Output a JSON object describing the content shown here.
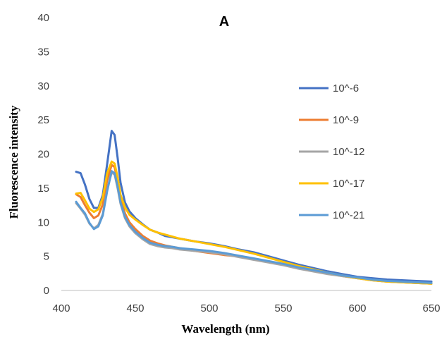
{
  "chart_data": {
    "type": "line",
    "title": "A",
    "xlabel": "Wavelength (nm)",
    "ylabel": "Fluorescence intensity",
    "xlim": [
      400,
      650
    ],
    "ylim": [
      0,
      40
    ],
    "xticks": [
      400,
      450,
      500,
      550,
      600,
      650
    ],
    "yticks": [
      0,
      5,
      10,
      15,
      20,
      25,
      30,
      35,
      40
    ],
    "grid": false,
    "legend_position": "right",
    "series": [
      {
        "name": "10^-6",
        "color": "#4472C4",
        "points": [
          [
            410,
            17.4
          ],
          [
            413,
            17.2
          ],
          [
            416,
            15.5
          ],
          [
            419,
            13.4
          ],
          [
            422,
            12.1
          ],
          [
            425,
            12.1
          ],
          [
            428,
            14.0
          ],
          [
            431,
            18.6
          ],
          [
            434,
            23.4
          ],
          [
            436,
            22.8
          ],
          [
            438,
            19.5
          ],
          [
            440,
            15.8
          ],
          [
            443,
            12.9
          ],
          [
            446,
            11.6
          ],
          [
            450,
            10.6
          ],
          [
            455,
            9.7
          ],
          [
            460,
            8.9
          ],
          [
            465,
            8.5
          ],
          [
            470,
            8.0
          ],
          [
            475,
            7.8
          ],
          [
            480,
            7.6
          ],
          [
            490,
            7.2
          ],
          [
            500,
            6.9
          ],
          [
            510,
            6.5
          ],
          [
            520,
            6.0
          ],
          [
            530,
            5.6
          ],
          [
            540,
            5.0
          ],
          [
            550,
            4.4
          ],
          [
            560,
            3.8
          ],
          [
            570,
            3.3
          ],
          [
            580,
            2.8
          ],
          [
            590,
            2.4
          ],
          [
            600,
            2.0
          ],
          [
            610,
            1.8
          ],
          [
            620,
            1.6
          ],
          [
            630,
            1.5
          ],
          [
            640,
            1.4
          ],
          [
            650,
            1.3
          ]
        ]
      },
      {
        "name": "10^-9",
        "color": "#ED7D31",
        "points": [
          [
            410,
            14.1
          ],
          [
            413,
            13.7
          ],
          [
            416,
            12.5
          ],
          [
            419,
            11.4
          ],
          [
            422,
            10.6
          ],
          [
            425,
            11.0
          ],
          [
            428,
            12.6
          ],
          [
            431,
            16.2
          ],
          [
            434,
            18.4
          ],
          [
            436,
            18.1
          ],
          [
            438,
            16.0
          ],
          [
            440,
            13.5
          ],
          [
            443,
            11.3
          ],
          [
            446,
            10.0
          ],
          [
            450,
            9.0
          ],
          [
            455,
            8.0
          ],
          [
            460,
            7.3
          ],
          [
            465,
            6.9
          ],
          [
            470,
            6.6
          ],
          [
            475,
            6.4
          ],
          [
            480,
            6.2
          ],
          [
            490,
            5.8
          ],
          [
            500,
            5.5
          ],
          [
            510,
            5.2
          ],
          [
            520,
            5.0
          ],
          [
            530,
            4.6
          ],
          [
            540,
            4.2
          ],
          [
            550,
            3.8
          ],
          [
            560,
            3.3
          ],
          [
            570,
            2.9
          ],
          [
            580,
            2.5
          ],
          [
            590,
            2.1
          ],
          [
            600,
            1.8
          ],
          [
            610,
            1.5
          ],
          [
            620,
            1.3
          ],
          [
            630,
            1.2
          ],
          [
            640,
            1.1
          ],
          [
            650,
            1.0
          ]
        ]
      },
      {
        "name": "10^-12",
        "color": "#A5A5A5",
        "points": [
          [
            410,
            12.8
          ],
          [
            413,
            12.0
          ],
          [
            416,
            11.1
          ],
          [
            419,
            9.8
          ],
          [
            422,
            9.1
          ],
          [
            425,
            9.6
          ],
          [
            428,
            11.2
          ],
          [
            431,
            14.8
          ],
          [
            434,
            17.3
          ],
          [
            436,
            17.0
          ],
          [
            438,
            15.0
          ],
          [
            440,
            12.7
          ],
          [
            443,
            10.6
          ],
          [
            446,
            9.4
          ],
          [
            450,
            8.4
          ],
          [
            455,
            7.5
          ],
          [
            460,
            6.8
          ],
          [
            465,
            6.5
          ],
          [
            470,
            6.3
          ],
          [
            475,
            6.2
          ],
          [
            480,
            6.0
          ],
          [
            490,
            5.8
          ],
          [
            500,
            5.6
          ],
          [
            510,
            5.3
          ],
          [
            520,
            4.9
          ],
          [
            530,
            4.5
          ],
          [
            540,
            4.1
          ],
          [
            550,
            3.7
          ],
          [
            560,
            3.2
          ],
          [
            570,
            2.8
          ],
          [
            580,
            2.4
          ],
          [
            590,
            2.1
          ],
          [
            600,
            1.8
          ],
          [
            610,
            1.5
          ],
          [
            620,
            1.3
          ],
          [
            630,
            1.2
          ],
          [
            640,
            1.1
          ],
          [
            650,
            1.0
          ]
        ]
      },
      {
        "name": "10^-17",
        "color": "#FFC000",
        "points": [
          [
            410,
            14.2
          ],
          [
            413,
            14.3
          ],
          [
            416,
            13.2
          ],
          [
            419,
            12.0
          ],
          [
            422,
            11.5
          ],
          [
            425,
            11.9
          ],
          [
            428,
            13.6
          ],
          [
            431,
            17.2
          ],
          [
            434,
            18.9
          ],
          [
            436,
            18.6
          ],
          [
            438,
            16.6
          ],
          [
            440,
            14.0
          ],
          [
            443,
            12.2
          ],
          [
            446,
            11.1
          ],
          [
            450,
            10.4
          ],
          [
            455,
            9.6
          ],
          [
            460,
            8.9
          ],
          [
            465,
            8.5
          ],
          [
            470,
            8.2
          ],
          [
            475,
            7.9
          ],
          [
            480,
            7.6
          ],
          [
            490,
            7.2
          ],
          [
            500,
            6.8
          ],
          [
            510,
            6.4
          ],
          [
            520,
            5.9
          ],
          [
            530,
            5.4
          ],
          [
            540,
            4.8
          ],
          [
            550,
            4.2
          ],
          [
            560,
            3.6
          ],
          [
            570,
            3.1
          ],
          [
            580,
            2.6
          ],
          [
            590,
            2.2
          ],
          [
            600,
            1.8
          ],
          [
            610,
            1.5
          ],
          [
            620,
            1.3
          ],
          [
            630,
            1.2
          ],
          [
            640,
            1.1
          ],
          [
            650,
            1.0
          ]
        ]
      },
      {
        "name": "10^-21",
        "color": "#5B9BD5",
        "points": [
          [
            410,
            13.0
          ],
          [
            413,
            12.1
          ],
          [
            416,
            11.3
          ],
          [
            419,
            9.9
          ],
          [
            422,
            9.0
          ],
          [
            425,
            9.4
          ],
          [
            428,
            11.0
          ],
          [
            431,
            14.6
          ],
          [
            434,
            17.5
          ],
          [
            436,
            17.2
          ],
          [
            438,
            15.3
          ],
          [
            440,
            12.9
          ],
          [
            443,
            10.8
          ],
          [
            446,
            9.6
          ],
          [
            450,
            8.6
          ],
          [
            455,
            7.7
          ],
          [
            460,
            7.0
          ],
          [
            465,
            6.7
          ],
          [
            470,
            6.5
          ],
          [
            475,
            6.4
          ],
          [
            480,
            6.2
          ],
          [
            490,
            6.0
          ],
          [
            500,
            5.8
          ],
          [
            510,
            5.5
          ],
          [
            520,
            5.1
          ],
          [
            530,
            4.7
          ],
          [
            540,
            4.3
          ],
          [
            550,
            3.9
          ],
          [
            560,
            3.4
          ],
          [
            570,
            3.0
          ],
          [
            580,
            2.6
          ],
          [
            590,
            2.2
          ],
          [
            600,
            1.9
          ],
          [
            610,
            1.6
          ],
          [
            620,
            1.4
          ],
          [
            630,
            1.3
          ],
          [
            640,
            1.2
          ],
          [
            650,
            1.1
          ]
        ]
      }
    ]
  }
}
